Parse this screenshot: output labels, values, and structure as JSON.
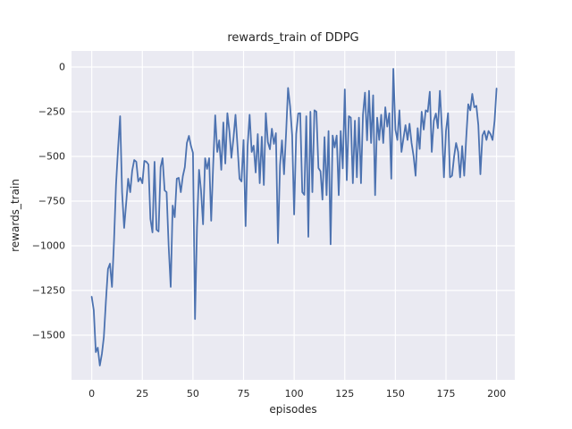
{
  "chart_data": {
    "type": "line",
    "title": "rewards_train of DDPG",
    "xlabel": "episodes",
    "ylabel": "rewards_train",
    "x_description": "episode index, one point per episode from 0 to 200",
    "xlim": [
      -10,
      209
    ],
    "ylim": [
      -1750,
      90
    ],
    "grid": true,
    "legend": false,
    "xticks": {
      "values": [
        0,
        25,
        50,
        75,
        100,
        125,
        150,
        175,
        200
      ],
      "labels": [
        "0",
        "25",
        "50",
        "75",
        "100",
        "125",
        "150",
        "175",
        "200"
      ]
    },
    "yticks": {
      "values": [
        0,
        -250,
        -500,
        -750,
        -1000,
        -1250,
        -1500
      ],
      "labels": [
        "0",
        "−250",
        "−500",
        "−750",
        "−1000",
        "−1250",
        "−1500"
      ]
    },
    "colors": {
      "line": "#4c72b0",
      "axes_bg": "#eaeaf2",
      "grid": "#ffffff",
      "text": "#262626",
      "figure_bg": "#ffffff"
    },
    "series": [
      {
        "name": "rewards_train",
        "values": [
          -1285,
          -1360,
          -1595,
          -1570,
          -1670,
          -1605,
          -1510,
          -1310,
          -1130,
          -1100,
          -1230,
          -970,
          -660,
          -455,
          -275,
          -700,
          -900,
          -760,
          -625,
          -700,
          -580,
          -520,
          -530,
          -640,
          -620,
          -650,
          -525,
          -530,
          -545,
          -850,
          -925,
          -530,
          -910,
          -920,
          -560,
          -510,
          -690,
          -700,
          -1000,
          -1230,
          -775,
          -840,
          -625,
          -620,
          -700,
          -610,
          -560,
          -425,
          -385,
          -440,
          -480,
          -1410,
          -900,
          -575,
          -690,
          -880,
          -510,
          -570,
          -510,
          -860,
          -550,
          -270,
          -475,
          -410,
          -575,
          -310,
          -540,
          -258,
          -360,
          -508,
          -400,
          -267,
          -440,
          -625,
          -640,
          -408,
          -890,
          -445,
          -267,
          -475,
          -440,
          -590,
          -375,
          -650,
          -390,
          -660,
          -258,
          -420,
          -460,
          -345,
          -430,
          -370,
          -985,
          -550,
          -410,
          -600,
          -370,
          -117,
          -220,
          -383,
          -825,
          -375,
          -260,
          -258,
          -700,
          -715,
          -275,
          -950,
          -250,
          -700,
          -242,
          -250,
          -565,
          -583,
          -742,
          -392,
          -717,
          -358,
          -992,
          -383,
          -450,
          -383,
          -717,
          -358,
          -567,
          -125,
          -633,
          -275,
          -283,
          -650,
          -300,
          -617,
          -283,
          -650,
          -267,
          -143,
          -410,
          -133,
          -425,
          -158,
          -717,
          -283,
          -408,
          -267,
          -425,
          -225,
          -333,
          -258,
          -625,
          -10,
          -350,
          -408,
          -242,
          -475,
          -400,
          -325,
          -408,
          -317,
          -425,
          -500,
          -608,
          -342,
          -458,
          -250,
          -350,
          -242,
          -250,
          -138,
          -475,
          -300,
          -260,
          -342,
          -133,
          -350,
          -617,
          -358,
          -258,
          -617,
          -608,
          -500,
          -425,
          -475,
          -617,
          -442,
          -608,
          -400,
          -208,
          -242,
          -150,
          -225,
          -217,
          -325,
          -600,
          -383,
          -358,
          -408,
          -358,
          -375,
          -408,
          -300,
          -120
        ]
      }
    ]
  }
}
